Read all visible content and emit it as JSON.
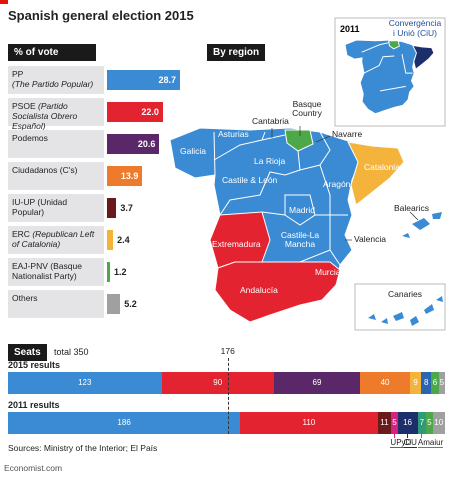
{
  "title": "Spanish general election 2015",
  "chart_data": [
    {
      "type": "bar",
      "title": "% of vote",
      "categories": [
        "PP",
        "PSOE",
        "Podemos",
        "Ciudadanos",
        "IU-UP",
        "ERC",
        "EAJ-PNV",
        "Others"
      ],
      "category_notes": [
        "(The Partido Popular)",
        "(Partido Socialista Obrero Español)",
        null,
        "(C's)",
        "(Unidad Popular)",
        "(Republican Left of Catalonia)",
        "(Basque Nationalist Party)",
        null
      ],
      "values": [
        28.7,
        22.0,
        20.6,
        13.9,
        3.7,
        2.4,
        1.2,
        5.2
      ],
      "value_labels": [
        "28.7",
        "22.0",
        "20.6",
        "13.9",
        "3.7",
        "2.4",
        "1.2",
        "5.2"
      ],
      "colors": [
        "#3a8bd4",
        "#e3232f",
        "#5a2868",
        "#ee7a2b",
        "#6b1a1c",
        "#f4b43c",
        "#4da84a",
        "#a0a0a0"
      ]
    },
    {
      "type": "stacked-bar",
      "title": "Seats",
      "subtitle": "total 350",
      "xlim": [
        0,
        350
      ],
      "majority": 176,
      "rows": [
        {
          "label": "2015 results",
          "values": [
            123,
            90,
            69,
            40,
            9,
            8,
            6,
            5
          ],
          "colors": [
            "#3a8bd4",
            "#e3232f",
            "#5a2868",
            "#ee7a2b",
            "#f4b43c",
            "#2a66b0",
            "#4da84a",
            "#a0a0a0"
          ]
        },
        {
          "label": "2011 results",
          "values": [
            186,
            110,
            11,
            5,
            16,
            7,
            5,
            10
          ],
          "colors": [
            "#3a8bd4",
            "#e3232f",
            "#6b1a1c",
            "#d4237f",
            "#1c2f6b",
            "#2e9a78",
            "#4da84a",
            "#a0a0a0"
          ],
          "notes": [
            null,
            null,
            null,
            "UPyD",
            "CiU",
            "Amaiur",
            null,
            null
          ]
        }
      ]
    }
  ],
  "map": {
    "title": "By region",
    "regions": [
      "Galicia",
      "Asturias",
      "Cantabria",
      "Basque Country",
      "Navarre",
      "La Rioja",
      "Castile & León",
      "Aragón",
      "Catalonia",
      "Madrid",
      "Extremadura",
      "Castile-La Mancha",
      "Valencia",
      "Balearics",
      "Murcia",
      "Andalucía",
      "Canaries"
    ],
    "inset": {
      "title": "2011",
      "label": [
        "Convergència",
        "i Unió (CiU)"
      ]
    }
  },
  "sources": "Sources: Ministry of the Interior; El País",
  "footer": "Economist.com"
}
